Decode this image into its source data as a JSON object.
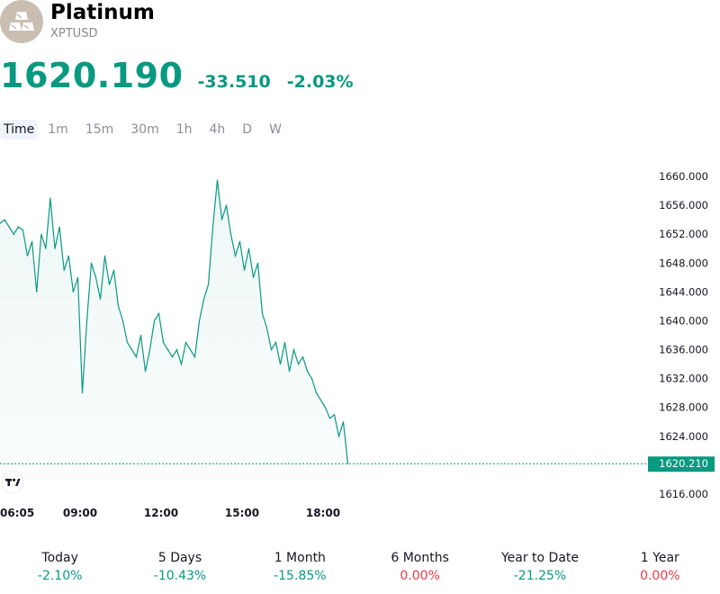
{
  "symbol": {
    "name": "Platinum",
    "ticker": "XPTUSD",
    "logo_icon": "gold-bars-icon"
  },
  "quote": {
    "last": "1620.190",
    "change": "-33.510",
    "change_pct": "-2.03%",
    "color": "#089981"
  },
  "intervals": [
    "Time",
    "1m",
    "15m",
    "30m",
    "1h",
    "4h",
    "D",
    "W"
  ],
  "active_interval": "Time",
  "watermark_icon": "tradingview-logo-icon",
  "chart_data": {
    "type": "area",
    "title": "",
    "xlabel": "",
    "ylabel": "",
    "line_color": "#089981",
    "ylim": [
      1614,
      1662
    ],
    "y_ticks": [
      "1660.000",
      "1656.000",
      "1652.000",
      "1648.000",
      "1644.000",
      "1640.000",
      "1636.000",
      "1632.000",
      "1628.000",
      "1624.000",
      "1616.000"
    ],
    "x_ticks": [
      "06:05",
      "09:00",
      "12:00",
      "15:00",
      "18:00"
    ],
    "last_price_label": "1620.210",
    "last_value": 1620.21,
    "series": [
      {
        "x": [
          "06:05",
          "06:15",
          "06:25",
          "06:35",
          "06:45",
          "06:55",
          "07:05",
          "07:15",
          "07:25",
          "07:35",
          "07:45",
          "07:55",
          "08:05",
          "08:15",
          "08:25",
          "08:35",
          "08:45",
          "08:55",
          "09:05",
          "09:15",
          "09:25",
          "09:35",
          "09:45",
          "09:55",
          "10:05",
          "10:15",
          "10:25",
          "10:35",
          "10:45",
          "10:55",
          "11:05",
          "11:15",
          "11:25",
          "11:35",
          "11:45",
          "11:55",
          "12:05",
          "12:15",
          "12:25",
          "12:35",
          "12:45",
          "12:55",
          "13:05",
          "13:15",
          "13:25",
          "13:35",
          "13:45",
          "13:55",
          "14:05",
          "14:15",
          "14:25",
          "14:35",
          "14:45",
          "14:55",
          "15:05",
          "15:15",
          "15:25",
          "15:35",
          "15:45",
          "15:55",
          "16:05",
          "16:15",
          "16:25",
          "16:35",
          "16:45",
          "16:55",
          "17:05",
          "17:15",
          "17:25",
          "17:35",
          "17:45",
          "17:55",
          "18:05",
          "18:15",
          "18:25",
          "18:35",
          "18:45",
          "18:55"
        ],
        "values": [
          1653.5,
          1654.0,
          1653.0,
          1652.0,
          1653.0,
          1652.6,
          1649.0,
          1651.0,
          1644.0,
          1652.0,
          1650.0,
          1657.0,
          1650.0,
          1653.0,
          1647.0,
          1649.0,
          1644.0,
          1646.0,
          1630.0,
          1640.0,
          1648.0,
          1646.0,
          1643.0,
          1649.0,
          1645.0,
          1647.0,
          1642.0,
          1640.0,
          1637.0,
          1636.0,
          1635.0,
          1638.0,
          1633.0,
          1636.0,
          1640.0,
          1641.0,
          1637.0,
          1636.0,
          1635.0,
          1636.0,
          1634.0,
          1637.0,
          1636.0,
          1635.0,
          1640.0,
          1643.0,
          1645.0,
          1653.0,
          1659.5,
          1654.0,
          1656.0,
          1652.0,
          1649.0,
          1651.0,
          1647.0,
          1650.0,
          1646.0,
          1648.0,
          1641.0,
          1639.0,
          1636.0,
          1637.0,
          1634.0,
          1637.0,
          1633.0,
          1636.0,
          1634.0,
          1635.0,
          1633.0,
          1632.0,
          1630.0,
          1629.0,
          1628.0,
          1626.5,
          1627.0,
          1624.0,
          1626.0,
          1620.21
        ]
      }
    ]
  },
  "performance": [
    {
      "label": "Today",
      "value": "-2.10%"
    },
    {
      "label": "5 Days",
      "value": "-10.43%"
    },
    {
      "label": "1 Month",
      "value": "-15.85%"
    },
    {
      "label": "6 Months",
      "value": "0.00%"
    },
    {
      "label": "Year to Date",
      "value": "-21.25%"
    },
    {
      "label": "1 Year",
      "value": "0.00%"
    }
  ],
  "colors": {
    "positive_change": "#089981",
    "zero_change": "#f23645"
  }
}
